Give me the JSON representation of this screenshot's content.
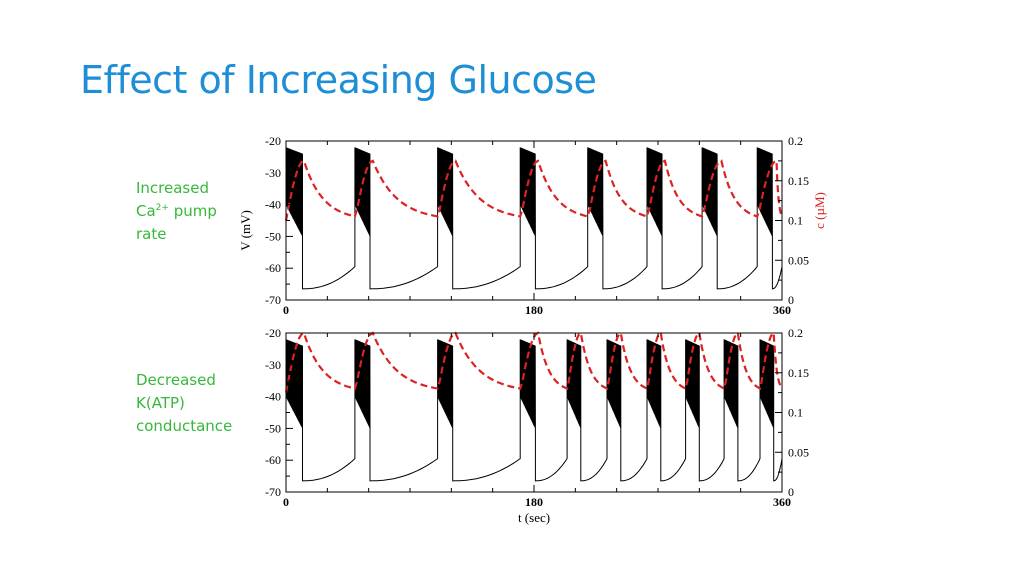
{
  "slide": {
    "title": "Effect of Increasing Glucose"
  },
  "labels": {
    "top": {
      "line1": "Increased",
      "line2_prefix": "Ca",
      "line2_sup": "2+",
      "line2_suffix": " pump",
      "line3": "rate"
    },
    "bottom": {
      "line1": "Decreased",
      "line2": "K(ATP)",
      "line3": "conductance"
    }
  },
  "colors": {
    "voltage": "#000000",
    "calcium": "#dd2222",
    "title": "#1e8fd6",
    "labels": "#36b83a"
  },
  "chart_data": [
    {
      "type": "line",
      "panel": "top",
      "xlim": [
        0,
        360
      ],
      "x_ticks": [
        "0",
        "180",
        "360"
      ],
      "ylim_left": [
        -70,
        -20
      ],
      "y_left_ticks": [
        "-20",
        "-30",
        "-40",
        "-50",
        "-60",
        "-70"
      ],
      "ylabel_left": "V (mV)",
      "ylim_right": [
        0,
        0.2
      ],
      "y_right_ticks": [
        "0.2",
        "0.15",
        "0.1",
        "0.05",
        "0"
      ],
      "ylabel_right": "c (µM)",
      "burst_times": [
        0,
        50,
        110,
        170,
        219,
        262,
        302,
        342
      ],
      "burst_durations": [
        12,
        11,
        11,
        11,
        11,
        11,
        11,
        11
      ],
      "calcium_peaks": [
        13,
        63,
        123,
        183,
        232,
        275,
        316,
        356
      ],
      "calcium_peak_value": 0.175,
      "calcium_trough_value": 0.1
    },
    {
      "type": "line",
      "panel": "bottom",
      "xlim": [
        0,
        360
      ],
      "x_ticks": [
        "0",
        "180",
        "360"
      ],
      "xlabel": "t (sec)",
      "ylim_left": [
        -70,
        -20
      ],
      "y_left_ticks": [
        "-20",
        "-30",
        "-40",
        "-50",
        "-60",
        "-70"
      ],
      "ylim_right": [
        0,
        0.2
      ],
      "y_right_ticks": [
        "0.2",
        "0.15",
        "0.1",
        "0.05",
        "0"
      ],
      "burst_times": [
        0,
        50,
        110,
        170,
        204,
        233,
        262,
        290,
        318,
        344
      ],
      "burst_durations": [
        12,
        11,
        11,
        11,
        10,
        10,
        10,
        10,
        10,
        10
      ],
      "calcium_peaks": [
        13,
        63,
        123,
        183,
        214,
        243,
        272,
        300,
        328,
        354
      ],
      "calcium_peak_value": 0.2,
      "calcium_trough_value": 0.125
    }
  ]
}
